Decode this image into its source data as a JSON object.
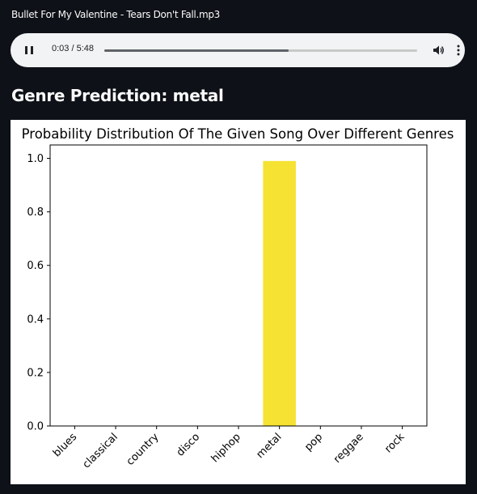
{
  "player": {
    "file_name": "Bullet For My Valentine - Tears Don't Fall.mp3",
    "time_display": "0:03 / 5:48",
    "buffered_fraction": 0.59,
    "icons": {
      "play_pause": "pause-icon",
      "volume": "volume-icon",
      "more": "more-options-icon"
    }
  },
  "prediction": {
    "heading": "Genre Prediction: metal"
  },
  "chart_data": {
    "type": "bar",
    "title": "Probability Distribution Of The Given Song Over Different Genres",
    "xlabel": "",
    "ylabel": "",
    "categories": [
      "blues",
      "classical",
      "country",
      "disco",
      "hiphop",
      "metal",
      "pop",
      "reggae",
      "rock"
    ],
    "values": [
      0.0,
      0.0,
      0.0,
      0.0,
      0.0,
      0.99,
      0.0,
      0.0,
      0.0
    ],
    "ylim": [
      0,
      1.05
    ],
    "yticks": [
      "0.0",
      "0.2",
      "0.4",
      "0.6",
      "0.8",
      "1.0"
    ],
    "bar_color": "#f5e232",
    "grid": false,
    "legend": "none"
  }
}
